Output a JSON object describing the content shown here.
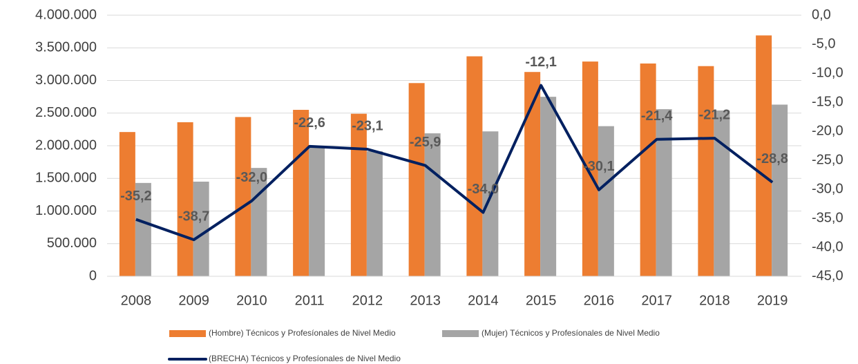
{
  "chart_data": {
    "type": "bar_line",
    "categories": [
      "2008",
      "2009",
      "2010",
      "2011",
      "2012",
      "2013",
      "2014",
      "2015",
      "2016",
      "2017",
      "2018",
      "2019"
    ],
    "series": [
      {
        "name": "(Hombre) Técnicos y Profesíonales de Nivel Medio",
        "color": "#ED7D31",
        "type": "bar",
        "values": [
          2210000,
          2360000,
          2440000,
          2550000,
          2490000,
          2960000,
          3370000,
          3130000,
          3290000,
          3260000,
          3220000,
          3690000
        ]
      },
      {
        "name": "(Mujer) Técnicos y Profesíonales de Nivel Medio",
        "color": "#A5A5A5",
        "type": "bar",
        "values": [
          1430000,
          1450000,
          1660000,
          1970000,
          1915000,
          2190000,
          2220000,
          2750000,
          2300000,
          2560000,
          2540000,
          2630000
        ]
      },
      {
        "name": "(BRECHA) Técnicos y Profesíonales de Nivel Medio",
        "color": "#002060",
        "type": "line",
        "axis": "y2",
        "values": [
          -35.2,
          -38.7,
          -32.0,
          -22.6,
          -23.1,
          -25.9,
          -34.0,
          -12.1,
          -30.1,
          -21.4,
          -21.2,
          -28.8
        ],
        "value_labels": [
          "-35,2",
          "-38,7",
          "-32,0",
          "-22,6",
          "-23,1",
          "-25,9",
          "-34,0",
          "-12,1",
          "-30,1",
          "-21,4",
          "-21,2",
          "-28,8"
        ]
      }
    ],
    "ylim": [
      0,
      4000000
    ],
    "yticks": [
      0,
      {
        "value": 500000,
        "label": "500.000"
      },
      {
        "value": 1000000,
        "label": "1.000.000"
      },
      {
        "value": 1500000,
        "label": "1.500.000"
      },
      {
        "value": 2000000,
        "label": "2.000.000"
      },
      {
        "value": 2500000,
        "label": "2.500.000"
      },
      {
        "value": 3000000,
        "label": "3.000.000"
      },
      {
        "value": 3500000,
        "label": "3.500.000"
      },
      {
        "value": 4000000,
        "label": "4.000.000"
      }
    ],
    "y2lim": [
      -45,
      0
    ],
    "y2ticks": [
      {
        "value": -45,
        "label": "-45,0"
      },
      {
        "value": -40,
        "label": "-40,0"
      },
      {
        "value": -35,
        "label": "-35,0"
      },
      {
        "value": -30,
        "label": "-30,0"
      },
      {
        "value": -25,
        "label": "-25,0"
      },
      {
        "value": -20,
        "label": "-20,0"
      },
      {
        "value": -15,
        "label": "-15,0"
      },
      {
        "value": -10,
        "label": "-10,0"
      },
      {
        "value": -5,
        "label": "-5,0"
      },
      {
        "value": 0,
        "label": "0,0"
      }
    ],
    "grid": true
  }
}
